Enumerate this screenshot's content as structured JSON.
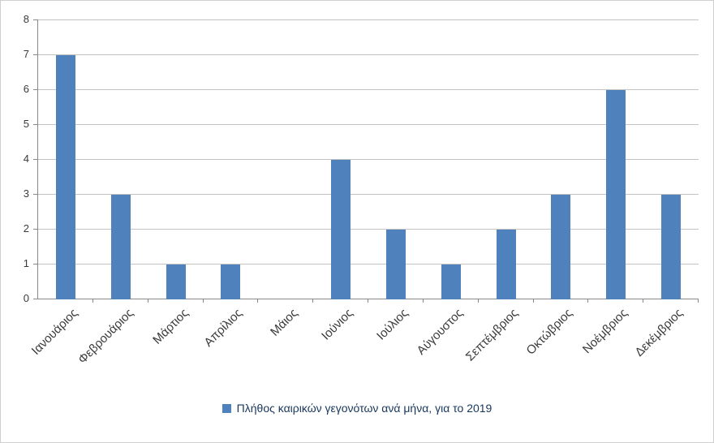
{
  "chart_data": {
    "type": "bar",
    "categories": [
      "Ιανουάριος",
      "Φεβρουάριος",
      "Μάρτιος",
      "Απρίλιος",
      "Μάιος",
      "Ιούνιος",
      "Ιούλιος",
      "Αύγουστος",
      "Σεπτέμβριος",
      "Οκτώβριος",
      "Νοέμβριος",
      "Δεκέμβριος"
    ],
    "values": [
      7,
      3,
      1,
      1,
      0,
      4,
      2,
      1,
      2,
      3,
      6,
      3
    ],
    "title": "",
    "xlabel": "",
    "ylabel": "",
    "ylim": [
      0,
      8
    ],
    "ytick_step": 1,
    "yticks": [
      "0",
      "1",
      "2",
      "3",
      "4",
      "5",
      "6",
      "7",
      "8"
    ],
    "grid": true,
    "legend": {
      "label": "Πλήθος καιρικών γεγονότων ανά μήνα, για το 2019",
      "position": "bottom"
    },
    "bar_color": "#4f81bd",
    "gridline_color": "#c3c3c3",
    "axis_line_color": "#898989",
    "tick_label_color": "#3a3a3a",
    "legend_text_color": "#17375d"
  }
}
